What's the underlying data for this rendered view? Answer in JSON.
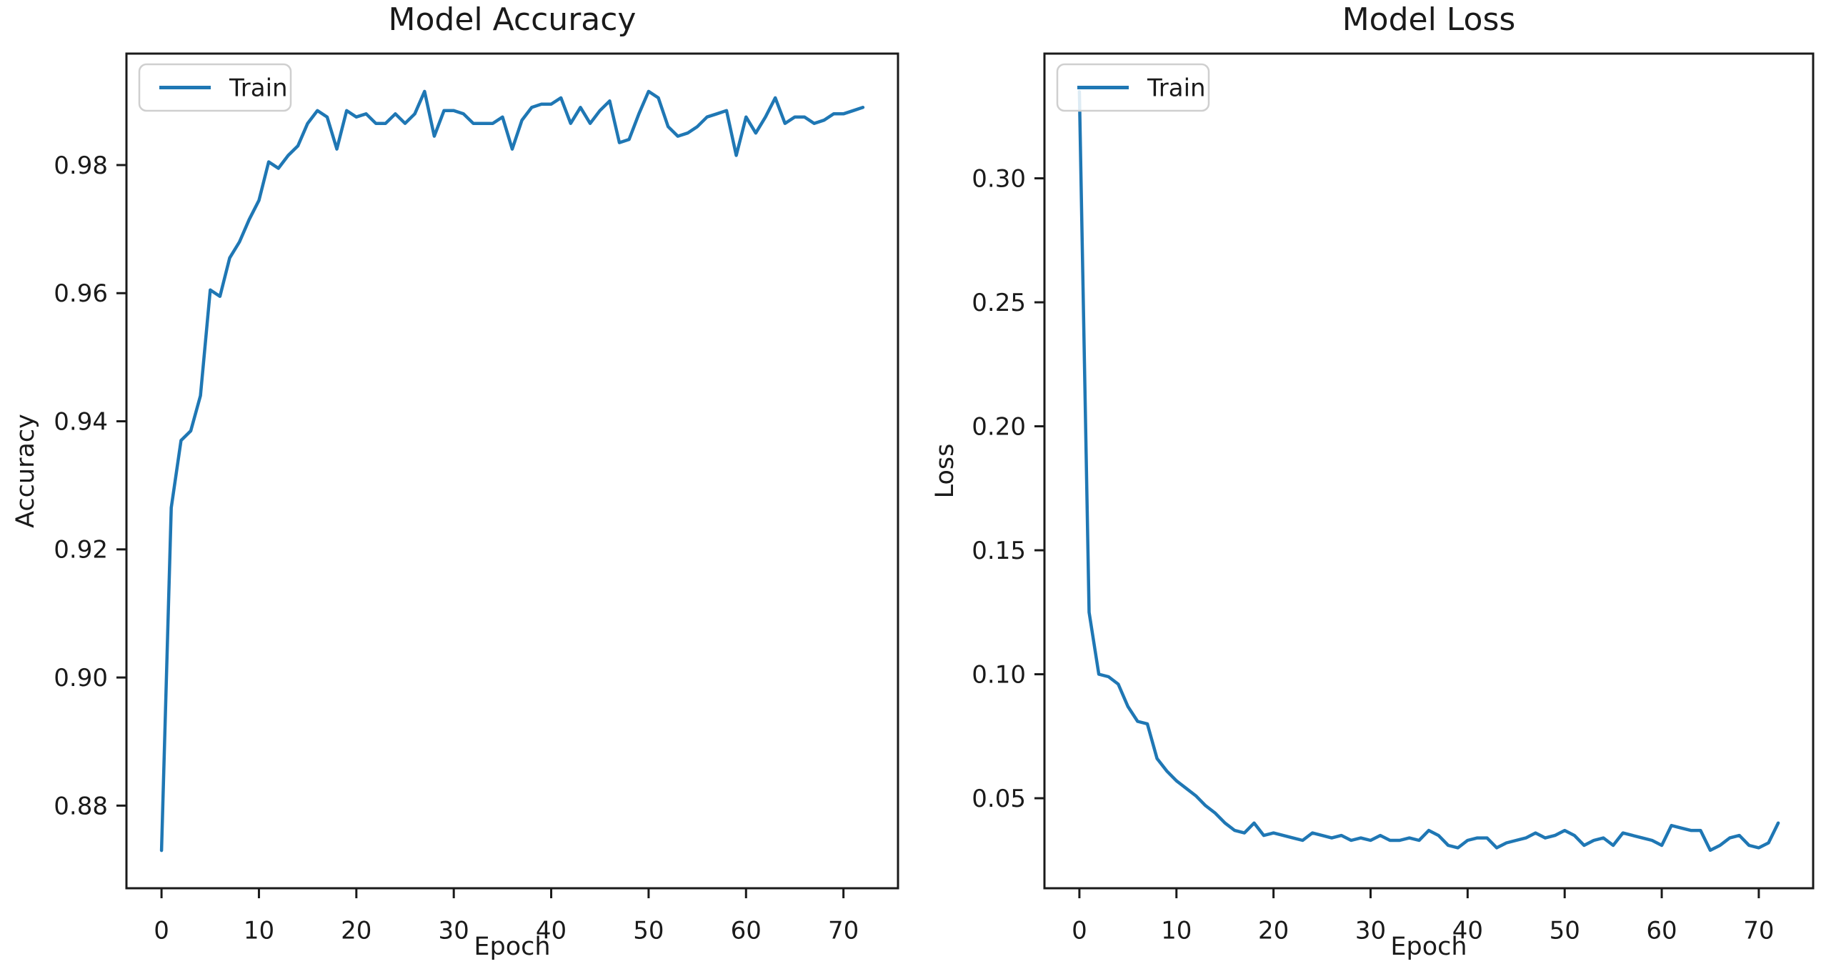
{
  "figure": {
    "background": "#ffffff",
    "text_color": "#1a1a1a",
    "spine_color": "#1a1a1a",
    "line_color": "#1f77b4"
  },
  "chart_data": [
    {
      "type": "line",
      "title": "Model Accuracy",
      "xlabel": "Epoch",
      "ylabel": "Accuracy",
      "grid": false,
      "legend": {
        "position": "upper-left",
        "entries": [
          {
            "label": "Train",
            "color": "#1f77b4"
          }
        ]
      },
      "xlim": [
        -3.6,
        75.6
      ],
      "ylim": [
        0.8671,
        0.9974
      ],
      "x_ticks": [
        0,
        10,
        20,
        30,
        40,
        50,
        60,
        70
      ],
      "y_ticks": [
        0.88,
        0.9,
        0.92,
        0.94,
        0.96,
        0.98
      ],
      "x": [
        0,
        1,
        2,
        3,
        4,
        5,
        6,
        7,
        8,
        9,
        10,
        11,
        12,
        13,
        14,
        15,
        16,
        17,
        18,
        19,
        20,
        21,
        22,
        23,
        24,
        25,
        26,
        27,
        28,
        29,
        30,
        31,
        32,
        33,
        34,
        35,
        36,
        37,
        38,
        39,
        40,
        41,
        42,
        43,
        44,
        45,
        46,
        47,
        48,
        49,
        50,
        51,
        52,
        53,
        54,
        55,
        56,
        57,
        58,
        59,
        60,
        61,
        62,
        63,
        64,
        65,
        66,
        67,
        68,
        69,
        70,
        71,
        72
      ],
      "series": [
        {
          "name": "Train",
          "color": "#1f77b4",
          "values": [
            0.873,
            0.9265,
            0.937,
            0.9385,
            0.944,
            0.9605,
            0.9595,
            0.9655,
            0.968,
            0.9715,
            0.9745,
            0.9805,
            0.9795,
            0.9815,
            0.983,
            0.9865,
            0.9885,
            0.9875,
            0.9825,
            0.9885,
            0.9875,
            0.988,
            0.9865,
            0.9865,
            0.988,
            0.9865,
            0.988,
            0.9915,
            0.9845,
            0.9885,
            0.9885,
            0.988,
            0.9865,
            0.9865,
            0.9865,
            0.9875,
            0.9825,
            0.987,
            0.989,
            0.9895,
            0.9895,
            0.9905,
            0.9865,
            0.989,
            0.9865,
            0.9885,
            0.99,
            0.9835,
            0.984,
            0.988,
            0.9915,
            0.9905,
            0.986,
            0.9845,
            0.985,
            0.986,
            0.9875,
            0.988,
            0.9885,
            0.9815,
            0.9875,
            0.985,
            0.9875,
            0.9905,
            0.9865,
            0.9875,
            0.9875,
            0.9865,
            0.987,
            0.988,
            0.988,
            0.9885,
            0.989
          ]
        }
      ]
    },
    {
      "type": "line",
      "title": "Model Loss",
      "xlabel": "Epoch",
      "ylabel": "Loss",
      "grid": false,
      "legend": {
        "position": "upper-left",
        "entries": [
          {
            "label": "Train",
            "color": "#1f77b4"
          }
        ]
      },
      "xlim": [
        -3.6,
        75.6
      ],
      "ylim": [
        0.0137,
        0.3503
      ],
      "x_ticks": [
        0,
        10,
        20,
        30,
        40,
        50,
        60,
        70
      ],
      "y_ticks": [
        0.05,
        0.1,
        0.15,
        0.2,
        0.25,
        0.3
      ],
      "x": [
        0,
        1,
        2,
        3,
        4,
        5,
        6,
        7,
        8,
        9,
        10,
        11,
        12,
        13,
        14,
        15,
        16,
        17,
        18,
        19,
        20,
        21,
        22,
        23,
        24,
        25,
        26,
        27,
        28,
        29,
        30,
        31,
        32,
        33,
        34,
        35,
        36,
        37,
        38,
        39,
        40,
        41,
        42,
        43,
        44,
        45,
        46,
        47,
        48,
        49,
        50,
        51,
        52,
        53,
        54,
        55,
        56,
        57,
        58,
        59,
        60,
        61,
        62,
        63,
        64,
        65,
        66,
        67,
        68,
        69,
        70,
        71,
        72
      ],
      "series": [
        {
          "name": "Train",
          "color": "#1f77b4",
          "values": [
            0.335,
            0.125,
            0.1,
            0.099,
            0.096,
            0.087,
            0.081,
            0.08,
            0.066,
            0.061,
            0.057,
            0.054,
            0.051,
            0.047,
            0.044,
            0.04,
            0.037,
            0.036,
            0.04,
            0.035,
            0.036,
            0.035,
            0.034,
            0.033,
            0.036,
            0.035,
            0.034,
            0.035,
            0.033,
            0.034,
            0.033,
            0.035,
            0.033,
            0.033,
            0.034,
            0.033,
            0.037,
            0.035,
            0.031,
            0.03,
            0.033,
            0.034,
            0.034,
            0.03,
            0.032,
            0.033,
            0.034,
            0.036,
            0.034,
            0.035,
            0.037,
            0.035,
            0.031,
            0.033,
            0.034,
            0.031,
            0.036,
            0.035,
            0.034,
            0.033,
            0.031,
            0.039,
            0.038,
            0.037,
            0.037,
            0.029,
            0.031,
            0.034,
            0.035,
            0.031,
            0.03,
            0.032,
            0.04
          ]
        }
      ]
    }
  ]
}
